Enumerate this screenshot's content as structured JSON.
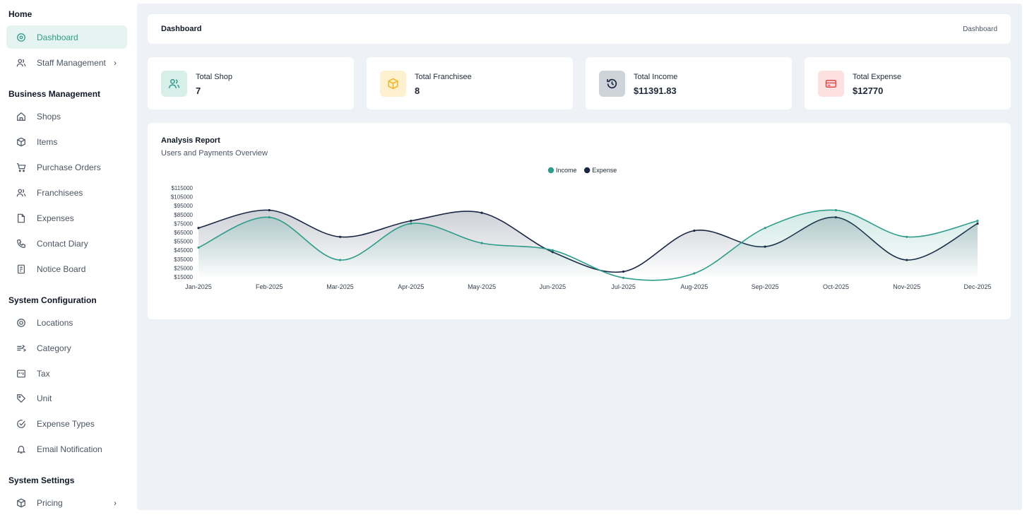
{
  "sidebar": {
    "sections": {
      "home": "Home",
      "business": "Business Management",
      "config": "System Configuration",
      "settings": "System Settings"
    },
    "items": {
      "dashboard": "Dashboard",
      "staff": "Staff Management",
      "shops": "Shops",
      "items": "Items",
      "purchase_orders": "Purchase Orders",
      "franchisees": "Franchisees",
      "expenses": "Expenses",
      "contact_diary": "Contact Diary",
      "notice_board": "Notice Board",
      "locations": "Locations",
      "category": "Category",
      "tax": "Tax",
      "unit": "Unit",
      "expense_types": "Expense Types",
      "email_notification": "Email Notification",
      "pricing": "Pricing"
    }
  },
  "header": {
    "title": "Dashboard",
    "breadcrumb": "Dashboard"
  },
  "stats": {
    "shop": {
      "label": "Total Shop",
      "value": "7"
    },
    "franchisee": {
      "label": "Total Franchisee",
      "value": "8"
    },
    "income": {
      "label": "Total Income",
      "value": "$11391.83"
    },
    "expense": {
      "label": "Total Expense",
      "value": "$12770"
    }
  },
  "colors": {
    "accent": "#2e9c8a",
    "income": "#2e9c8a",
    "expense": "#1a2744"
  },
  "report": {
    "title": "Analysis Report",
    "subtitle": "Users and Payments Overview"
  },
  "chart_data": {
    "type": "area",
    "categories": [
      "Jan-2025",
      "Feb-2025",
      "Mar-2025",
      "Apr-2025",
      "May-2025",
      "Jun-2025",
      "Jul-2025",
      "Aug-2025",
      "Sep-2025",
      "Oct-2025",
      "Nov-2025",
      "Dec-2025"
    ],
    "series": [
      {
        "name": "Income",
        "values": [
          48000,
          82000,
          34000,
          75000,
          53000,
          45000,
          14000,
          19000,
          70000,
          90000,
          60000,
          78000
        ]
      },
      {
        "name": "Expense",
        "values": [
          70000,
          90000,
          60000,
          78000,
          87000,
          43000,
          21000,
          67000,
          49000,
          82000,
          34000,
          75000
        ]
      }
    ],
    "yticks": [
      "$115000",
      "$105000",
      "$95000",
      "$85000",
      "$75000",
      "$65000",
      "$55000",
      "$45000",
      "$35000",
      "$25000",
      "$15000"
    ],
    "ylim": [
      15000,
      115000
    ],
    "legend_position": "top-center",
    "grid": false
  }
}
